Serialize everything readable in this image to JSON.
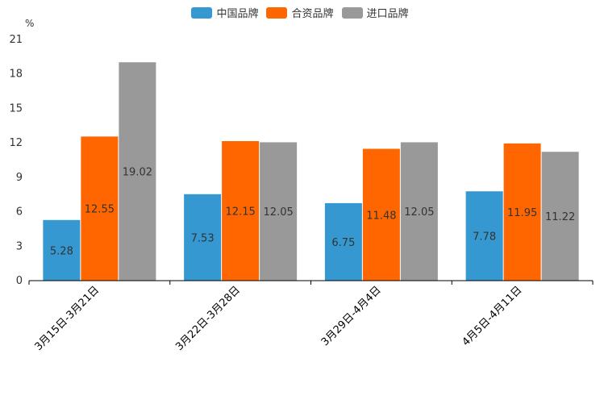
{
  "chart_data": {
    "type": "bar",
    "title": "",
    "ylabel": "%",
    "xlabel": "",
    "ylim": [
      0,
      21
    ],
    "yticks": [
      0,
      3,
      6,
      9,
      12,
      15,
      18,
      21
    ],
    "legend_position": "top",
    "categories": [
      "3月15日-3月21日",
      "3月22日-3月28日",
      "3月29日-4月4日",
      "4月5日-4月11日"
    ],
    "series": [
      {
        "name": "中国品牌",
        "color": "#3598d1",
        "values": [
          5.28,
          7.53,
          6.75,
          7.78
        ],
        "labels": [
          "5.28",
          "7.53",
          "6.75",
          "7.78"
        ]
      },
      {
        "name": "合资品牌",
        "color": "#ff6600",
        "values": [
          12.55,
          12.15,
          11.48,
          11.95
        ],
        "labels": [
          "12.55",
          "12.15",
          "11.48",
          "11.95"
        ]
      },
      {
        "name": "进口品牌",
        "color": "#999999",
        "values": [
          19.02,
          12.05,
          12.05,
          11.22
        ],
        "labels": [
          "19.02",
          "12.05",
          "12.05",
          "11.22"
        ]
      }
    ]
  }
}
